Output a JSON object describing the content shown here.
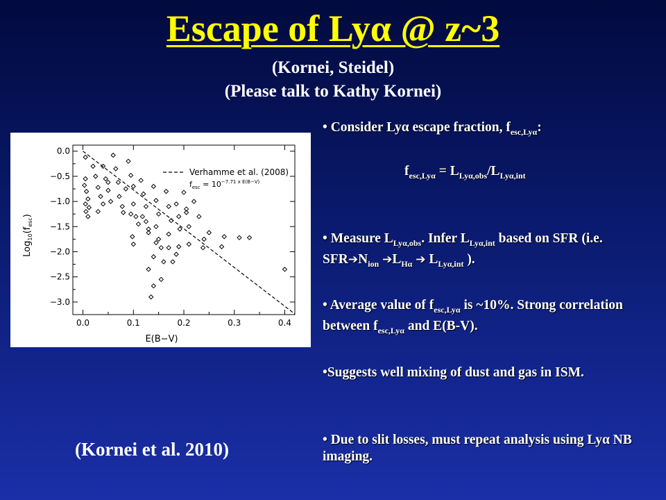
{
  "slide": {
    "title": "Escape of Lyα @ z~3",
    "subtitle_1": "(Kornei, Steidel)",
    "subtitle_2": "(Please talk to Kathy Kornei)",
    "caption": "(Kornei et al. 2010)"
  },
  "bullets": {
    "b1_text": "• Consider Lyα escape fraction, f",
    "b1_sub": "esc,Lyα",
    "b1_end": ":",
    "eq_f": "f",
    "eq_sub1": "esc,Lyα",
    "eq_mid": " = L",
    "eq_sub2": "Lyα,obs",
    "eq_div": "/L",
    "eq_sub3": "Lyα,int",
    "b2_a": "• Measure L",
    "b2_sub1": "Lyα,obs",
    "b2_b": ". Infer L",
    "b2_sub2": "Lyα,int",
    "b2_c": " based on SFR (i.e. SFR",
    "b2_d": "N",
    "b2_sub3": "ion",
    "b2_e": "L",
    "b2_sub4": "Hα",
    "b2_f": " L",
    "b2_sub5": "Lyα,int",
    "b2_g": " ).",
    "arrow": "➔",
    "b3_a": "• Average value of f",
    "b3_sub1": "esc,Lyα",
    "b3_b": " is ~10%. Strong correlation between f",
    "b3_sub2": "esc,Lyα",
    "b3_c": " and E(B-V).",
    "b4": "•Suggests well mixing of dust and gas in ISM.",
    "b5": "• Due to slit losses, must repeat analysis using Lyα NB imaging."
  },
  "chart_data": {
    "type": "scatter",
    "xlabel": "E(B−V)",
    "ylabel_main": "Log",
    "ylabel_sub1": "10",
    "ylabel_paren": "(f",
    "ylabel_sub2": "esc",
    "ylabel_close": ")",
    "xlim": [
      -0.02,
      0.42
    ],
    "ylim": [
      -3.25,
      0.12
    ],
    "xticks": [
      0.0,
      0.1,
      0.2,
      0.3,
      0.4
    ],
    "xtick_labels": [
      "0.0",
      "0.1",
      "0.2",
      "0.3",
      "0.4"
    ],
    "yticks": [
      0.0,
      -0.5,
      -1.0,
      -1.5,
      -2.0,
      -2.5,
      -3.0
    ],
    "ytick_labels": [
      "0.0",
      "−0.5",
      "−1.0",
      "−1.5",
      "−2.0",
      "−2.5",
      "−3.0"
    ],
    "legend": {
      "position": "top-right",
      "label": "Verhamme et al. (2008)",
      "formula_f": "f",
      "formula_sub": "esc",
      "formula_eq": " = 10",
      "formula_sup": "−7.71 x E(B−V)"
    },
    "model_line": {
      "slope": -7.71,
      "x": [
        0.0,
        0.42
      ]
    },
    "points": [
      [
        0.005,
        -0.12
      ],
      [
        0.005,
        -0.55
      ],
      [
        0.003,
        -0.68
      ],
      [
        0.007,
        -0.8
      ],
      [
        0.01,
        -0.95
      ],
      [
        0.005,
        -1.05
      ],
      [
        0.012,
        -1.12
      ],
      [
        0.006,
        -1.2
      ],
      [
        0.01,
        -1.3
      ],
      [
        0.02,
        -0.3
      ],
      [
        0.025,
        -0.5
      ],
      [
        0.03,
        -0.72
      ],
      [
        0.035,
        -0.9
      ],
      [
        0.04,
        -1.05
      ],
      [
        0.03,
        -1.2
      ],
      [
        0.04,
        -0.3
      ],
      [
        0.045,
        -0.55
      ],
      [
        0.05,
        -0.78
      ],
      [
        0.055,
        -1.0
      ],
      [
        0.05,
        -0.62
      ],
      [
        0.06,
        -0.08
      ],
      [
        0.065,
        -0.35
      ],
      [
        0.07,
        -0.62
      ],
      [
        0.072,
        -0.9
      ],
      [
        0.078,
        -1.1
      ],
      [
        0.08,
        -1.22
      ],
      [
        0.085,
        -0.75
      ],
      [
        0.09,
        -0.2
      ],
      [
        0.095,
        -0.48
      ],
      [
        0.1,
        -0.7
      ],
      [
        0.1,
        -1.05
      ],
      [
        0.105,
        -1.3
      ],
      [
        0.11,
        -1.45
      ],
      [
        0.098,
        -1.7
      ],
      [
        0.1,
        -1.85
      ],
      [
        0.095,
        -1.25
      ],
      [
        0.115,
        -0.58
      ],
      [
        0.12,
        -0.85
      ],
      [
        0.125,
        -1.1
      ],
      [
        0.125,
        -1.4
      ],
      [
        0.13,
        -1.55
      ],
      [
        0.13,
        -1.62
      ],
      [
        0.118,
        -1.3
      ],
      [
        0.14,
        -0.7
      ],
      [
        0.145,
        -0.98
      ],
      [
        0.15,
        -1.25
      ],
      [
        0.145,
        -1.5
      ],
      [
        0.155,
        -1.92
      ],
      [
        0.16,
        -2.2
      ],
      [
        0.155,
        -2.55
      ],
      [
        0.165,
        -0.8
      ],
      [
        0.17,
        -1.1
      ],
      [
        0.175,
        -1.38
      ],
      [
        0.17,
        -1.65
      ],
      [
        0.17,
        -1.92
      ],
      [
        0.178,
        -2.2
      ],
      [
        0.185,
        -1.05
      ],
      [
        0.19,
        -1.3
      ],
      [
        0.192,
        -1.55
      ],
      [
        0.19,
        -1.9
      ],
      [
        0.185,
        -2.05
      ],
      [
        0.2,
        -0.82
      ],
      [
        0.205,
        -1.15
      ],
      [
        0.205,
        -1.22
      ],
      [
        0.21,
        -1.5
      ],
      [
        0.21,
        -1.85
      ],
      [
        0.22,
        -1.0
      ],
      [
        0.23,
        -1.3
      ],
      [
        0.24,
        -1.75
      ],
      [
        0.238,
        -1.92
      ],
      [
        0.25,
        -1.62
      ],
      [
        0.275,
        -1.9
      ],
      [
        0.28,
        -1.7
      ],
      [
        0.31,
        -1.72
      ],
      [
        0.33,
        -1.72
      ],
      [
        0.4,
        -2.35
      ],
      [
        0.13,
        -2.35
      ],
      [
        0.14,
        -2.1
      ],
      [
        0.135,
        -2.9
      ],
      [
        0.14,
        -2.68
      ],
      [
        0.145,
        -1.82
      ],
      [
        0.15,
        -1.75
      ]
    ]
  },
  "colors": {
    "title": "#ffff00",
    "text": "#ffffff",
    "bg_top": "#020a3e",
    "bg_bottom": "#1a2fa8"
  }
}
